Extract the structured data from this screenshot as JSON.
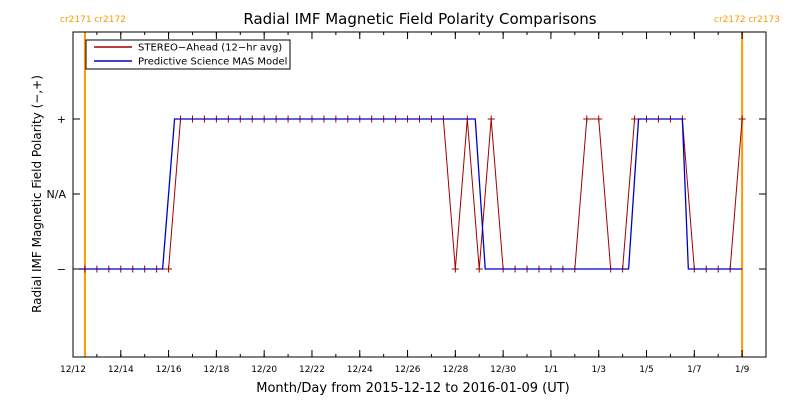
{
  "chart_data": {
    "type": "line",
    "title": "Radial IMF Magnetic Field Polarity Comparisons",
    "xlabel": "Month/Day from 2015-12-12 to 2016-01-09 (UT)",
    "ylabel": "Radial IMF Magnetic Field Polarity (−,+)",
    "x_range": [
      "2015-12-12",
      "2016-01-10"
    ],
    "y_categories": [
      "−",
      "N/A",
      "+"
    ],
    "x_ticks": [
      {
        "date": "2015-12-12",
        "label": "12/12"
      },
      {
        "date": "2015-12-14",
        "label": "12/14"
      },
      {
        "date": "2015-12-16",
        "label": "12/16"
      },
      {
        "date": "2015-12-18",
        "label": "12/18"
      },
      {
        "date": "2015-12-20",
        "label": "12/20"
      },
      {
        "date": "2015-12-22",
        "label": "12/22"
      },
      {
        "date": "2015-12-24",
        "label": "12/24"
      },
      {
        "date": "2015-12-26",
        "label": "12/26"
      },
      {
        "date": "2015-12-28",
        "label": "12/28"
      },
      {
        "date": "2015-12-30",
        "label": "12/30"
      },
      {
        "date": "2016-01-01",
        "label": "1/1"
      },
      {
        "date": "2016-01-03",
        "label": "1/3"
      },
      {
        "date": "2016-01-05",
        "label": "1/5"
      },
      {
        "date": "2016-01-07",
        "label": "1/7"
      },
      {
        "date": "2016-01-09",
        "label": "1/9"
      }
    ],
    "carrington_markers": [
      {
        "datetime": "2015-12-12T12:00",
        "label": "cr2171 cr2172",
        "align": "left"
      },
      {
        "datetime": "2016-01-09T00:00",
        "label": "cr2172 cr2173",
        "align": "right"
      }
    ],
    "series": [
      {
        "name": "STEREO−Ahead (12−hr avg)",
        "color": "#a00000",
        "marker": "+",
        "points": [
          [
            "2015-12-12T12:00",
            -1
          ],
          [
            "2015-12-13T00:00",
            -1
          ],
          [
            "2015-12-13T12:00",
            -1
          ],
          [
            "2015-12-14T00:00",
            -1
          ],
          [
            "2015-12-14T12:00",
            -1
          ],
          [
            "2015-12-15T00:00",
            -1
          ],
          [
            "2015-12-15T12:00",
            -1
          ],
          [
            "2015-12-16T00:00",
            -1
          ],
          [
            "2015-12-16T12:00",
            1
          ],
          [
            "2015-12-17T00:00",
            1
          ],
          [
            "2015-12-17T12:00",
            1
          ],
          [
            "2015-12-18T00:00",
            1
          ],
          [
            "2015-12-18T12:00",
            1
          ],
          [
            "2015-12-19T00:00",
            1
          ],
          [
            "2015-12-19T12:00",
            1
          ],
          [
            "2015-12-20T00:00",
            1
          ],
          [
            "2015-12-20T12:00",
            1
          ],
          [
            "2015-12-21T00:00",
            1
          ],
          [
            "2015-12-21T12:00",
            1
          ],
          [
            "2015-12-22T00:00",
            1
          ],
          [
            "2015-12-22T12:00",
            1
          ],
          [
            "2015-12-23T00:00",
            1
          ],
          [
            "2015-12-23T12:00",
            1
          ],
          [
            "2015-12-24T00:00",
            1
          ],
          [
            "2015-12-24T12:00",
            1
          ],
          [
            "2015-12-25T00:00",
            1
          ],
          [
            "2015-12-25T12:00",
            1
          ],
          [
            "2015-12-26T00:00",
            1
          ],
          [
            "2015-12-26T12:00",
            1
          ],
          [
            "2015-12-27T00:00",
            1
          ],
          [
            "2015-12-27T12:00",
            1
          ],
          [
            "2015-12-28T00:00",
            -1
          ],
          [
            "2015-12-28T12:00",
            1
          ],
          [
            "2015-12-29T00:00",
            -1
          ],
          [
            "2015-12-29T12:00",
            1
          ],
          [
            "2015-12-30T00:00",
            -1
          ],
          [
            "2015-12-30T12:00",
            -1
          ],
          [
            "2015-12-31T00:00",
            -1
          ],
          [
            "2015-12-31T12:00",
            -1
          ],
          [
            "2016-01-01T00:00",
            -1
          ],
          [
            "2016-01-01T12:00",
            -1
          ],
          [
            "2016-01-02T00:00",
            -1
          ],
          [
            "2016-01-02T12:00",
            1
          ],
          [
            "2016-01-03T00:00",
            1
          ],
          [
            "2016-01-03T12:00",
            -1
          ],
          [
            "2016-01-04T00:00",
            -1
          ],
          [
            "2016-01-04T12:00",
            1
          ],
          [
            "2016-01-05T00:00",
            1
          ],
          [
            "2016-01-05T12:00",
            1
          ],
          [
            "2016-01-06T00:00",
            1
          ],
          [
            "2016-01-06T12:00",
            1
          ],
          [
            "2016-01-07T00:00",
            -1
          ],
          [
            "2016-01-07T12:00",
            -1
          ],
          [
            "2016-01-08T00:00",
            -1
          ],
          [
            "2016-01-08T12:00",
            -1
          ],
          [
            "2016-01-09T00:00",
            1
          ]
        ]
      },
      {
        "name": "Predictive Science MAS Model",
        "color": "#0000cc",
        "marker": "none",
        "points": [
          [
            "2015-12-12T06:00",
            -1
          ],
          [
            "2015-12-15T18:00",
            -1
          ],
          [
            "2015-12-16T06:00",
            1
          ],
          [
            "2015-12-28T20:00",
            1
          ],
          [
            "2015-12-29T06:00",
            -1
          ],
          [
            "2016-01-04T06:00",
            -1
          ],
          [
            "2016-01-04T16:00",
            1
          ],
          [
            "2016-01-06T12:00",
            1
          ],
          [
            "2016-01-06T18:00",
            -1
          ],
          [
            "2016-01-09T00:00",
            -1
          ]
        ]
      }
    ],
    "legend_position": "top-left",
    "grid": false
  }
}
